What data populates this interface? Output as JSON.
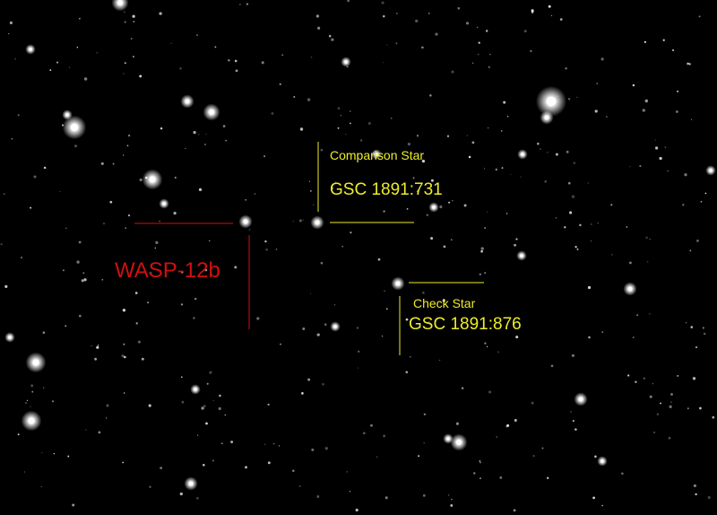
{
  "colors": {
    "target": "#d01010",
    "reference": "#ecec2a",
    "sky": "#000000",
    "star": "#ffffff"
  },
  "target": {
    "name": "WASP-12b"
  },
  "comparison_star": {
    "title": "Comparison Star",
    "catalog_id": "GSC 1891:731"
  },
  "check_star": {
    "title": "Check Star",
    "catalog_id": "GSC 1891:876"
  }
}
